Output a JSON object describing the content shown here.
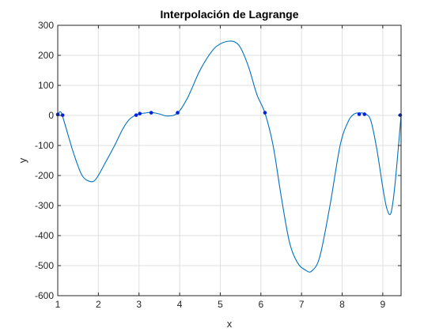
{
  "chart_data": {
    "type": "line",
    "title": "Interpolación de Lagrange",
    "xlabel": "x",
    "ylabel": "y",
    "xlim": [
      1,
      9.45
    ],
    "ylim": [
      -600,
      300
    ],
    "grid": true,
    "x_ticks": [
      1,
      2,
      3,
      4,
      5,
      6,
      7,
      8,
      9
    ],
    "y_ticks": [
      -600,
      -500,
      -400,
      -300,
      -200,
      -100,
      0,
      100,
      200,
      300
    ],
    "curve_color": "#0072BD",
    "point_color": "#0022DD",
    "series": [
      {
        "type": "line",
        "x": [
          1.0,
          1.05,
          1.1,
          1.2,
          1.4,
          1.6,
          1.8,
          1.95,
          2.2,
          2.4,
          2.6,
          2.75,
          2.9,
          3.0,
          3.15,
          3.3,
          3.5,
          3.7,
          3.95,
          4.2,
          4.5,
          4.8,
          5.0,
          5.2,
          5.35,
          5.5,
          5.7,
          5.9,
          6.1,
          6.3,
          6.5,
          6.7,
          6.9,
          7.1,
          7.25,
          7.45,
          7.7,
          7.95,
          8.15,
          8.3,
          8.42,
          8.55,
          8.7,
          8.85,
          9.0,
          9.1,
          9.2,
          9.3,
          9.45
        ],
        "y": [
          0,
          12,
          5,
          -40,
          -130,
          -200,
          -220,
          -210,
          -150,
          -100,
          -45,
          -15,
          0,
          5,
          8,
          10,
          5,
          -2,
          8,
          60,
          150,
          215,
          238,
          247,
          245,
          225,
          160,
          70,
          8,
          -100,
          -270,
          -420,
          -490,
          -515,
          -518,
          -470,
          -300,
          -100,
          -20,
          5,
          8,
          6,
          -15,
          -110,
          -240,
          -310,
          -325,
          -230,
          0
        ]
      },
      {
        "type": "scatter",
        "x": [
          1.0,
          1.12,
          2.93,
          3.02,
          3.3,
          3.95,
          6.1,
          8.42,
          8.55,
          9.43
        ],
        "y": [
          3,
          1,
          1,
          6,
          9,
          9,
          9,
          4,
          4,
          1
        ]
      }
    ]
  }
}
